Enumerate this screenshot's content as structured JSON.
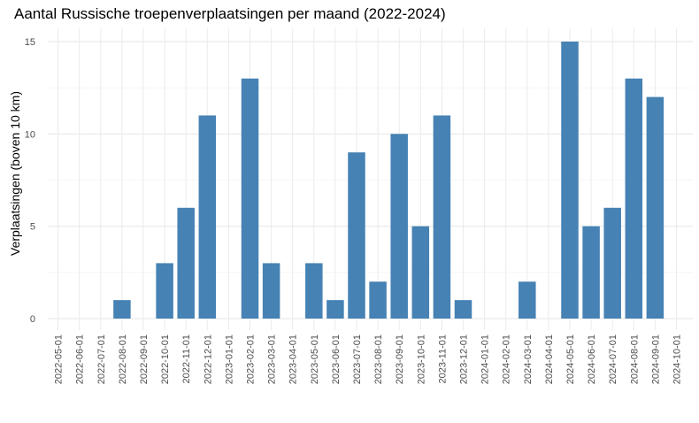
{
  "chart_data": {
    "type": "bar",
    "title": "Aantal Russische troepenverplaatsingen per maand (2022-2024)",
    "xlabel": "",
    "ylabel": "Verplaatsingen (boven 10 km)",
    "ylim": [
      0,
      15
    ],
    "yticks": [
      "0",
      "5",
      "10",
      "15"
    ],
    "grid": true,
    "bar_color": "#4682b4",
    "categories": [
      "2022-05-01",
      "2022-06-01",
      "2022-07-01",
      "2022-08-01",
      "2022-09-01",
      "2022-10-01",
      "2022-11-01",
      "2022-12-01",
      "2023-01-01",
      "2023-02-01",
      "2023-03-01",
      "2023-04-01",
      "2023-05-01",
      "2023-06-01",
      "2023-07-01",
      "2023-08-01",
      "2023-09-01",
      "2023-10-01",
      "2023-11-01",
      "2023-12-01",
      "2024-01-01",
      "2024-02-01",
      "2024-03-01",
      "2024-04-01",
      "2024-05-01",
      "2024-06-01",
      "2024-07-01",
      "2024-08-01",
      "2024-09-01",
      "2024-10-01"
    ],
    "values": [
      0,
      0,
      0,
      1,
      0,
      3,
      6,
      11,
      0,
      13,
      3,
      0,
      3,
      1,
      9,
      2,
      10,
      5,
      11,
      1,
      0,
      0,
      2,
      0,
      15,
      5,
      6,
      13,
      12,
      0
    ]
  }
}
